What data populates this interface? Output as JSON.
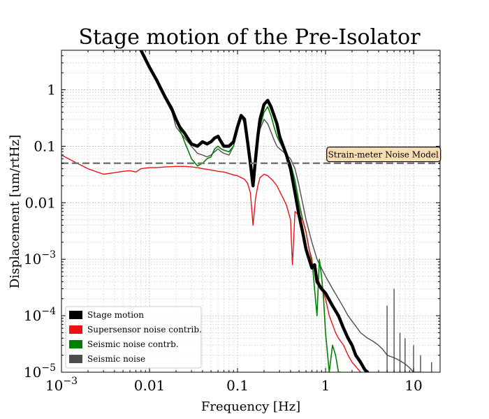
{
  "chart_data": {
    "type": "line",
    "title": "Stage motion of the Pre-Isolator",
    "xlabel": "Frequency [Hz]",
    "ylabel": "Displacement [um/rtHz]",
    "xscale": "log",
    "yscale": "log",
    "xlim": [
      0.001,
      20
    ],
    "ylim": [
      1e-05,
      5
    ],
    "grid": true,
    "legend_position": "lower-left",
    "x_ticks": [
      {
        "value": 0.001,
        "base": "10",
        "exp": "−3"
      },
      {
        "value": 0.01,
        "label": "0.01"
      },
      {
        "value": 0.1,
        "label": "0.1"
      },
      {
        "value": 1,
        "label": "1"
      },
      {
        "value": 10,
        "label": "10"
      }
    ],
    "y_ticks": [
      {
        "value": 1,
        "label": "1"
      },
      {
        "value": 0.1,
        "label": "0.1"
      },
      {
        "value": 0.01,
        "label": "0.01"
      },
      {
        "value": 0.001,
        "base": "10",
        "exp": "−3"
      },
      {
        "value": 0.0001,
        "base": "10",
        "exp": "−4"
      },
      {
        "value": 1e-05,
        "base": "10",
        "exp": "−5"
      }
    ],
    "annotation": {
      "text": "Strain-meter Noise Model",
      "x": 1.05,
      "y": 0.075
    },
    "series": [
      {
        "name": "Seismic noise",
        "color": "#4d4d4d",
        "width": 1.4,
        "x": [
          0.008,
          0.01,
          0.012,
          0.015,
          0.018,
          0.02,
          0.025,
          0.03,
          0.035,
          0.04,
          0.045,
          0.05,
          0.055,
          0.06,
          0.065,
          0.07,
          0.08,
          0.09,
          0.1,
          0.11,
          0.12,
          0.13,
          0.14,
          0.15,
          0.16,
          0.17,
          0.18,
          0.2,
          0.22,
          0.24,
          0.26,
          0.28,
          0.3,
          0.33,
          0.36,
          0.4,
          0.45,
          0.5,
          0.6,
          0.7,
          0.8,
          1.0,
          1.2,
          1.4,
          1.6,
          1.8,
          2.0,
          2.5,
          3.0,
          3.5,
          4.0,
          4.5,
          5.0,
          5.5,
          6.0,
          6.5,
          7.0,
          8.0,
          9.0,
          10.0,
          11.0,
          12.0
        ],
        "y": [
          5,
          2.5,
          1.5,
          0.7,
          0.4,
          0.22,
          0.14,
          0.1,
          0.075,
          0.07,
          0.065,
          0.07,
          0.08,
          0.09,
          0.08,
          0.075,
          0.07,
          0.1,
          0.2,
          0.35,
          0.3,
          0.12,
          0.05,
          0.035,
          0.06,
          0.12,
          0.2,
          0.3,
          0.25,
          0.18,
          0.13,
          0.1,
          0.09,
          0.08,
          0.07,
          0.06,
          0.04,
          0.02,
          0.005,
          0.002,
          0.001,
          0.0005,
          0.0003,
          0.0002,
          0.00014,
          0.0001,
          8e-05,
          5e-05,
          4e-05,
          3.5e-05,
          3e-05,
          2.5e-05,
          2e-05,
          1.9e-05,
          1.8e-05,
          1.7e-05,
          1.6e-05,
          1.4e-05,
          1.2e-05,
          1e-05,
          1e-05,
          1e-05
        ]
      },
      {
        "name": "Seismic noise contrb.",
        "color": "#008000",
        "width": 1.6,
        "x": [
          0.008,
          0.01,
          0.012,
          0.015,
          0.018,
          0.02,
          0.022,
          0.025,
          0.03,
          0.035,
          0.04,
          0.045,
          0.05,
          0.055,
          0.06,
          0.065,
          0.07,
          0.08,
          0.09,
          0.1,
          0.11,
          0.12,
          0.13,
          0.14,
          0.15,
          0.16,
          0.17,
          0.18,
          0.2,
          0.22,
          0.24,
          0.26,
          0.28,
          0.3,
          0.33,
          0.36,
          0.4,
          0.45,
          0.5,
          0.55,
          0.6,
          0.65,
          0.7,
          0.75,
          0.8,
          0.85,
          0.9,
          0.95,
          1.0,
          1.1,
          1.2,
          1.3,
          1.4,
          1.5
        ],
        "y": [
          5,
          2.5,
          1.5,
          0.8,
          0.5,
          0.3,
          0.2,
          0.12,
          0.06,
          0.045,
          0.05,
          0.06,
          0.065,
          0.09,
          0.1,
          0.09,
          0.085,
          0.08,
          0.1,
          0.2,
          0.35,
          0.25,
          0.1,
          0.04,
          0.025,
          0.05,
          0.12,
          0.22,
          0.4,
          0.5,
          0.35,
          0.22,
          0.15,
          0.12,
          0.09,
          0.07,
          0.05,
          0.025,
          0.01,
          0.005,
          0.003,
          0.0015,
          0.001,
          0.0003,
          0.0001,
          0.001,
          0.0005,
          0.0002,
          5e-05,
          1e-05,
          3e-05,
          2e-05,
          1e-05,
          1e-05
        ]
      },
      {
        "name": "Supersensor noise contrib.",
        "color": "#ee1111",
        "width": 1.4,
        "x": [
          0.001,
          0.0015,
          0.002,
          0.003,
          0.004,
          0.005,
          0.006,
          0.007,
          0.008,
          0.01,
          0.012,
          0.015,
          0.02,
          0.025,
          0.03,
          0.035,
          0.04,
          0.05,
          0.06,
          0.07,
          0.08,
          0.09,
          0.1,
          0.11,
          0.12,
          0.13,
          0.14,
          0.15,
          0.16,
          0.17,
          0.18,
          0.2,
          0.22,
          0.25,
          0.28,
          0.3,
          0.33,
          0.36,
          0.4,
          0.42,
          0.45,
          0.5,
          0.55,
          0.6,
          0.65,
          0.7,
          0.8,
          0.9,
          1.0,
          1.1,
          1.2,
          1.3,
          1.4,
          1.6,
          1.8,
          2.0,
          2.5,
          3.0
        ],
        "y": [
          0.07,
          0.05,
          0.04,
          0.032,
          0.034,
          0.036,
          0.037,
          0.035,
          0.04,
          0.042,
          0.042,
          0.043,
          0.044,
          0.044,
          0.043,
          0.042,
          0.04,
          0.038,
          0.036,
          0.035,
          0.033,
          0.031,
          0.03,
          0.028,
          0.026,
          0.022,
          0.015,
          0.004,
          0.012,
          0.02,
          0.028,
          0.032,
          0.03,
          0.025,
          0.02,
          0.016,
          0.012,
          0.009,
          0.005,
          0.0008,
          0.007,
          0.006,
          0.005,
          0.003,
          0.0015,
          0.0009,
          0.0005,
          0.0003,
          0.0002,
          0.0001,
          7e-05,
          5e-05,
          4e-05,
          3e-05,
          2e-05,
          1.5e-05,
          1e-05,
          8e-06
        ]
      },
      {
        "name": "Stage motion",
        "color": "#000000",
        "width": 4.5,
        "x": [
          0.008,
          0.01,
          0.012,
          0.015,
          0.018,
          0.02,
          0.022,
          0.025,
          0.03,
          0.035,
          0.04,
          0.045,
          0.05,
          0.055,
          0.06,
          0.065,
          0.07,
          0.08,
          0.09,
          0.1,
          0.11,
          0.12,
          0.13,
          0.14,
          0.15,
          0.16,
          0.17,
          0.18,
          0.2,
          0.22,
          0.24,
          0.26,
          0.28,
          0.3,
          0.33,
          0.36,
          0.4,
          0.45,
          0.5,
          0.55,
          0.6,
          0.65,
          0.7,
          0.75,
          0.8,
          0.9,
          1.0,
          1.2,
          1.4,
          1.6,
          1.8,
          2.0,
          2.2,
          2.5,
          2.8,
          3.0
        ],
        "y": [
          5,
          2.5,
          1.5,
          0.75,
          0.45,
          0.3,
          0.22,
          0.17,
          0.11,
          0.1,
          0.12,
          0.11,
          0.12,
          0.14,
          0.15,
          0.12,
          0.1,
          0.1,
          0.12,
          0.22,
          0.35,
          0.3,
          0.12,
          0.05,
          0.02,
          0.06,
          0.15,
          0.3,
          0.55,
          0.65,
          0.5,
          0.35,
          0.25,
          0.15,
          0.1,
          0.07,
          0.04,
          0.015,
          0.006,
          0.003,
          0.0015,
          0.001,
          0.0007,
          0.0008,
          0.0004,
          0.0003,
          0.00025,
          0.00015,
          0.0001,
          6e-05,
          4e-05,
          3e-05,
          2e-05,
          1.5e-05,
          1.1e-05,
          1e-05
        ]
      }
    ],
    "spikes": {
      "color": "#4d4d4d",
      "x": [
        5.0,
        6.0,
        7.0,
        8.0,
        10.0,
        12.0,
        16.0
      ],
      "y": [
        0.00015,
        0.0003,
        5e-05,
        4e-05,
        3e-05,
        2e-05,
        1.5e-05
      ]
    },
    "reference_line": {
      "name": "Strain-meter Noise Model",
      "value": 0.05,
      "color": "#777777",
      "style": "dashed"
    },
    "legend": [
      {
        "label": "Stage motion",
        "color": "#000000"
      },
      {
        "label": "Supersensor noise contrib.",
        "color": "#ee1111"
      },
      {
        "label": "Seismic noise contrb.",
        "color": "#008000"
      },
      {
        "label": "Seismic noise",
        "color": "#4d4d4d"
      }
    ]
  }
}
